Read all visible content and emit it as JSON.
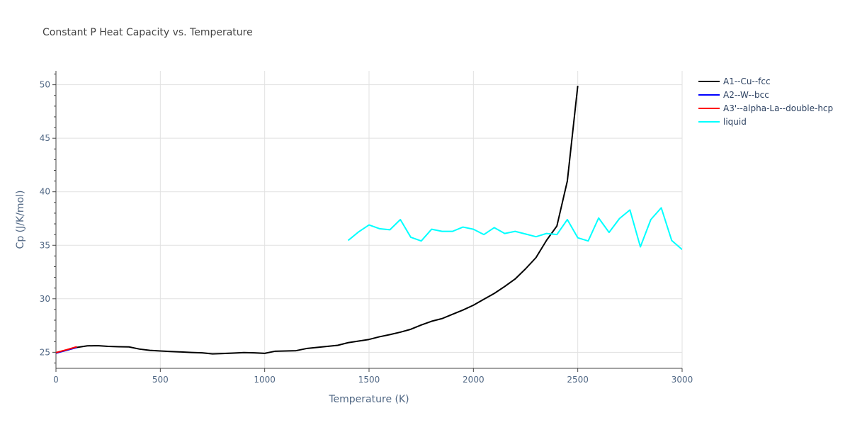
{
  "chart_data": {
    "type": "line",
    "title": "Constant P Heat Capacity vs. Temperature",
    "xlabel": "Temperature (K)",
    "ylabel": "Cp (J/K/mol)",
    "xlim": [
      0,
      3000
    ],
    "ylim": [
      23.5,
      51.3
    ],
    "xticks": [
      0,
      500,
      1000,
      1500,
      2000,
      2500,
      3000
    ],
    "yticks": [
      25,
      30,
      35,
      40,
      45,
      50
    ],
    "grid": true,
    "legend_position": "top-right",
    "series": [
      {
        "name": "A1--Cu--fcc",
        "color": "#000000",
        "x": [
          0,
          50,
          100,
          150,
          200,
          250,
          300,
          350,
          400,
          450,
          500,
          550,
          600,
          650,
          700,
          750,
          800,
          850,
          900,
          950,
          1000,
          1050,
          1100,
          1150,
          1200,
          1250,
          1300,
          1350,
          1400,
          1450,
          1500,
          1550,
          1600,
          1650,
          1700,
          1750,
          1800,
          1850,
          1900,
          1950,
          2000,
          2050,
          2100,
          2150,
          2200,
          2250,
          2300,
          2350,
          2400,
          2450,
          2500
        ],
        "y": [
          24.95,
          25.2,
          25.45,
          25.6,
          25.62,
          25.55,
          25.52,
          25.5,
          25.3,
          25.18,
          25.12,
          25.07,
          25.03,
          24.98,
          24.95,
          24.85,
          24.88,
          24.92,
          24.97,
          24.95,
          24.9,
          25.1,
          25.12,
          25.15,
          25.35,
          25.45,
          25.55,
          25.65,
          25.9,
          26.05,
          26.2,
          26.45,
          26.65,
          26.88,
          27.15,
          27.55,
          27.9,
          28.15,
          28.55,
          28.95,
          29.4,
          29.95,
          30.5,
          31.15,
          31.85,
          32.8,
          33.85,
          35.45,
          36.8,
          41.0,
          49.9
        ]
      },
      {
        "name": "A2--W--bcc",
        "color": "#0000ff",
        "x": [
          0,
          50,
          100
        ],
        "y": [
          24.92,
          25.18,
          25.45
        ]
      },
      {
        "name": "A3'--alpha-La--double-hcp",
        "color": "#ff0000",
        "x": [
          0,
          50,
          100
        ],
        "y": [
          24.97,
          25.23,
          25.52
        ]
      },
      {
        "name": "liquid",
        "color": "#00ffff",
        "x": [
          1400,
          1450,
          1500,
          1550,
          1600,
          1650,
          1700,
          1750,
          1800,
          1850,
          1900,
          1950,
          2000,
          2050,
          2100,
          2150,
          2200,
          2250,
          2300,
          2350,
          2400,
          2450,
          2500,
          2550,
          2600,
          2650,
          2700,
          2750,
          2800,
          2850,
          2900,
          2950,
          3000
        ],
        "y": [
          35.45,
          36.25,
          36.9,
          36.55,
          36.45,
          37.4,
          35.75,
          35.4,
          36.5,
          36.3,
          36.3,
          36.7,
          36.5,
          36.0,
          36.65,
          36.1,
          36.3,
          36.05,
          35.8,
          36.1,
          36.0,
          37.4,
          35.7,
          35.4,
          37.55,
          36.2,
          37.5,
          38.3,
          34.85,
          37.4,
          38.5,
          35.45,
          34.6
        ]
      }
    ]
  }
}
